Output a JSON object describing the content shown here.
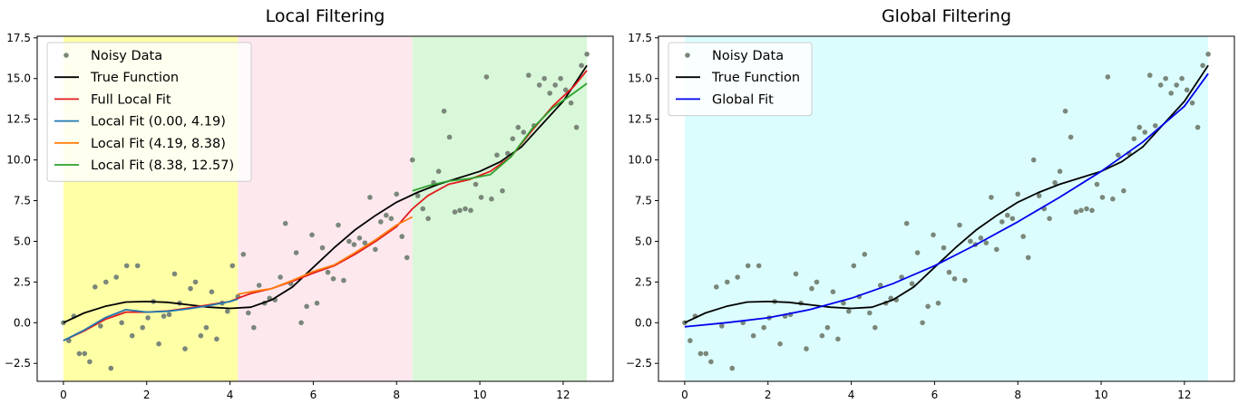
{
  "chart_data": [
    {
      "type": "line",
      "title": "Local Filtering",
      "xlabel": "",
      "ylabel": "",
      "xlim": [
        -0.63,
        13.2
      ],
      "ylim": [
        -3.6,
        17.6
      ],
      "xticks": [
        0,
        2,
        4,
        6,
        8,
        10,
        12
      ],
      "xtick_labels": [
        "0",
        "2",
        "4",
        "6",
        "8",
        "10",
        "12"
      ],
      "yticks": [
        -2.5,
        0,
        2.5,
        5,
        7.5,
        10,
        12.5,
        15,
        17.5
      ],
      "ytick_labels": [
        "−2.5",
        "0.0",
        "2.5",
        "5.0",
        "7.5",
        "10.0",
        "12.5",
        "15.0",
        "17.5"
      ],
      "grid": false,
      "legend_position": "top-left",
      "regions": [
        {
          "x0": 0.0,
          "x1": 4.19,
          "color": "#ffffa6"
        },
        {
          "x0": 4.19,
          "x1": 8.38,
          "color": "#fde8ee"
        },
        {
          "x0": 8.38,
          "x1": 12.57,
          "color": "#d9f7d9"
        }
      ],
      "series": [
        {
          "name": "Noisy Data",
          "kind": "scatter",
          "color": "#7a877a",
          "x": [
            0.0,
            0.13,
            0.25,
            0.38,
            0.51,
            0.63,
            0.76,
            0.89,
            1.02,
            1.14,
            1.27,
            1.4,
            1.52,
            1.65,
            1.78,
            1.9,
            2.03,
            2.16,
            2.29,
            2.41,
            2.54,
            2.67,
            2.79,
            2.92,
            3.05,
            3.17,
            3.3,
            3.43,
            3.56,
            3.68,
            3.81,
            3.94,
            4.06,
            4.19,
            4.32,
            4.44,
            4.57,
            4.7,
            4.83,
            4.95,
            5.08,
            5.21,
            5.33,
            5.46,
            5.59,
            5.71,
            5.84,
            5.97,
            6.09,
            6.22,
            6.35,
            6.48,
            6.6,
            6.73,
            6.86,
            6.98,
            7.11,
            7.24,
            7.36,
            7.49,
            7.62,
            7.75,
            7.87,
            8.0,
            8.13,
            8.25,
            8.38,
            8.51,
            8.63,
            8.76,
            8.89,
            9.01,
            9.14,
            9.27,
            9.4,
            9.52,
            9.65,
            9.78,
            9.9,
            10.03,
            10.16,
            10.28,
            10.41,
            10.54,
            10.67,
            10.79,
            10.92,
            11.05,
            11.17,
            11.3,
            11.43,
            11.55,
            11.68,
            11.81,
            11.94,
            12.06,
            12.19,
            12.32,
            12.44,
            12.57
          ],
          "y": [
            0.0,
            -1.1,
            0.4,
            -1.9,
            -1.9,
            -2.4,
            2.2,
            -0.2,
            2.5,
            -2.8,
            2.8,
            0.0,
            3.5,
            -0.8,
            3.5,
            -0.3,
            0.3,
            1.3,
            -1.3,
            0.4,
            0.5,
            3.0,
            1.2,
            -1.6,
            2.1,
            2.5,
            -0.8,
            -0.3,
            1.9,
            -1.0,
            1.2,
            0.7,
            3.5,
            1.6,
            4.2,
            0.6,
            -0.3,
            2.3,
            1.2,
            1.5,
            1.4,
            2.8,
            6.1,
            2.4,
            4.3,
            0.0,
            1.0,
            5.4,
            1.2,
            4.6,
            3.1,
            2.7,
            6.0,
            2.6,
            5.0,
            4.8,
            5.2,
            4.9,
            7.7,
            4.5,
            6.2,
            6.6,
            6.4,
            7.9,
            5.3,
            4.0,
            10.0,
            7.8,
            7.0,
            6.4,
            8.6,
            9.3,
            13.0,
            11.4,
            6.8,
            6.9,
            7.0,
            6.9,
            8.5,
            7.7,
            15.1,
            7.6,
            10.3,
            8.1,
            10.4,
            11.3,
            12.0,
            11.7,
            15.2,
            12.1,
            14.6,
            15.0,
            14.1,
            14.6,
            15.0,
            14.3,
            13.5,
            12.0,
            15.8,
            16.5
          ]
        },
        {
          "name": "True Function",
          "kind": "line",
          "color": "#000000",
          "x": [
            0,
            0.5,
            1,
            1.5,
            2,
            2.5,
            3,
            3.5,
            4,
            4.5,
            5,
            5.5,
            6,
            6.5,
            7,
            7.5,
            8,
            8.5,
            9,
            9.5,
            10,
            10.5,
            11,
            11.5,
            12,
            12.57
          ],
          "y": [
            0.0,
            0.6,
            1.0,
            1.27,
            1.3,
            1.25,
            1.1,
            0.95,
            0.88,
            0.95,
            1.4,
            2.2,
            3.4,
            4.6,
            5.7,
            6.6,
            7.4,
            8.0,
            8.5,
            8.9,
            9.3,
            9.9,
            10.8,
            12.2,
            13.6,
            15.8
          ]
        },
        {
          "name": "Full Local Fit",
          "kind": "line",
          "color": "#e31a1c",
          "x": [
            0,
            0.5,
            1,
            1.5,
            2,
            2.5,
            3,
            3.5,
            4,
            4.19,
            4.5,
            5,
            5.5,
            6,
            6.5,
            7,
            7.5,
            8,
            8.38,
            8.75,
            9.25,
            9.75,
            10.25,
            10.75,
            11.25,
            11.75,
            12.25,
            12.57
          ],
          "y": [
            -1.1,
            -0.5,
            0.2,
            0.65,
            0.65,
            0.72,
            0.9,
            1.1,
            1.3,
            1.5,
            1.8,
            2.1,
            2.55,
            3.05,
            3.5,
            4.2,
            5.0,
            5.9,
            7.0,
            7.8,
            8.5,
            8.8,
            9.3,
            10.2,
            11.8,
            13.3,
            14.5,
            15.5
          ]
        },
        {
          "name": "Local Fit (0.00, 4.19)",
          "kind": "line",
          "color": "#1f77b4",
          "x": [
            0,
            0.5,
            1,
            1.5,
            2,
            2.5,
            3,
            3.5,
            4,
            4.19
          ],
          "y": [
            -1.1,
            -0.45,
            0.3,
            0.8,
            0.65,
            0.7,
            0.85,
            1.05,
            1.3,
            1.45
          ]
        },
        {
          "name": "Local Fit (4.19, 8.38)",
          "kind": "line",
          "color": "#ff7f0e",
          "x": [
            4.19,
            4.5,
            5,
            5.5,
            6,
            6.5,
            7,
            7.5,
            8,
            8.38
          ],
          "y": [
            1.75,
            1.9,
            2.1,
            2.6,
            3.15,
            3.55,
            4.3,
            5.1,
            6.0,
            6.5
          ]
        },
        {
          "name": "Local Fit (8.38, 12.57)",
          "kind": "line",
          "color": "#2ca02c",
          "x": [
            8.38,
            8.75,
            9.25,
            9.75,
            10.25,
            10.75,
            11.25,
            11.75,
            12.25,
            12.57
          ],
          "y": [
            8.1,
            8.4,
            8.7,
            8.85,
            9.1,
            10.2,
            11.9,
            13.2,
            14.1,
            14.7
          ]
        }
      ]
    },
    {
      "type": "line",
      "title": "Global Filtering",
      "xlabel": "",
      "ylabel": "",
      "xlim": [
        -0.63,
        13.2
      ],
      "ylim": [
        -3.6,
        17.6
      ],
      "xticks": [
        0,
        2,
        4,
        6,
        8,
        10,
        12
      ],
      "xtick_labels": [
        "0",
        "2",
        "4",
        "6",
        "8",
        "10",
        "12"
      ],
      "yticks": [
        -2.5,
        0,
        2.5,
        5,
        7.5,
        10,
        12.5,
        15,
        17.5
      ],
      "ytick_labels": [
        "−2.5",
        "0.0",
        "2.5",
        "5.0",
        "7.5",
        "10.0",
        "12.5",
        "15.0",
        "17.5"
      ],
      "grid": false,
      "legend_position": "top-left",
      "regions": [
        {
          "x0": 0.0,
          "x1": 12.57,
          "color": "#dcfdfd"
        }
      ],
      "series": [
        {
          "name": "Noisy Data",
          "kind": "scatter",
          "color": "#7a877a",
          "x": [
            0.0,
            0.13,
            0.25,
            0.38,
            0.51,
            0.63,
            0.76,
            0.89,
            1.02,
            1.14,
            1.27,
            1.4,
            1.52,
            1.65,
            1.78,
            1.9,
            2.03,
            2.16,
            2.29,
            2.41,
            2.54,
            2.67,
            2.79,
            2.92,
            3.05,
            3.17,
            3.3,
            3.43,
            3.56,
            3.68,
            3.81,
            3.94,
            4.06,
            4.19,
            4.32,
            4.44,
            4.57,
            4.7,
            4.83,
            4.95,
            5.08,
            5.21,
            5.33,
            5.46,
            5.59,
            5.71,
            5.84,
            5.97,
            6.09,
            6.22,
            6.35,
            6.48,
            6.6,
            6.73,
            6.86,
            6.98,
            7.11,
            7.24,
            7.36,
            7.49,
            7.62,
            7.75,
            7.87,
            8.0,
            8.13,
            8.25,
            8.38,
            8.51,
            8.63,
            8.76,
            8.89,
            9.01,
            9.14,
            9.27,
            9.4,
            9.52,
            9.65,
            9.78,
            9.9,
            10.03,
            10.16,
            10.28,
            10.41,
            10.54,
            10.67,
            10.79,
            10.92,
            11.05,
            11.17,
            11.3,
            11.43,
            11.55,
            11.68,
            11.81,
            11.94,
            12.06,
            12.19,
            12.32,
            12.44,
            12.57
          ],
          "y": [
            0.0,
            -1.1,
            0.4,
            -1.9,
            -1.9,
            -2.4,
            2.2,
            -0.2,
            2.5,
            -2.8,
            2.8,
            0.0,
            3.5,
            -0.8,
            3.5,
            -0.3,
            0.3,
            1.3,
            -1.3,
            0.4,
            0.5,
            3.0,
            1.2,
            -1.6,
            2.1,
            2.5,
            -0.8,
            -0.3,
            1.9,
            -1.0,
            1.2,
            0.7,
            3.5,
            1.6,
            4.2,
            0.6,
            -0.3,
            2.3,
            1.2,
            1.5,
            1.4,
            2.8,
            6.1,
            2.4,
            4.3,
            0.0,
            1.0,
            5.4,
            1.2,
            4.6,
            3.1,
            2.7,
            6.0,
            2.6,
            5.0,
            4.8,
            5.2,
            4.9,
            7.7,
            4.5,
            6.2,
            6.6,
            6.4,
            7.9,
            5.3,
            4.0,
            10.0,
            7.8,
            7.0,
            6.4,
            8.6,
            9.3,
            13.0,
            11.4,
            6.8,
            6.9,
            7.0,
            6.9,
            8.5,
            7.7,
            15.1,
            7.6,
            10.3,
            8.1,
            10.4,
            11.3,
            12.0,
            11.7,
            15.2,
            12.1,
            14.6,
            15.0,
            14.1,
            14.6,
            15.0,
            14.3,
            13.5,
            12.0,
            15.8,
            16.5
          ]
        },
        {
          "name": "True Function",
          "kind": "line",
          "color": "#000000",
          "x": [
            0,
            0.5,
            1,
            1.5,
            2,
            2.5,
            3,
            3.5,
            4,
            4.5,
            5,
            5.5,
            6,
            6.5,
            7,
            7.5,
            8,
            8.5,
            9,
            9.5,
            10,
            10.5,
            11,
            11.5,
            12,
            12.57
          ],
          "y": [
            0.0,
            0.6,
            1.0,
            1.27,
            1.3,
            1.25,
            1.1,
            0.95,
            0.88,
            0.95,
            1.4,
            2.2,
            3.4,
            4.6,
            5.7,
            6.6,
            7.4,
            8.0,
            8.5,
            8.9,
            9.3,
            9.9,
            10.8,
            12.2,
            13.6,
            15.8
          ]
        },
        {
          "name": "Global Fit",
          "kind": "line",
          "color": "#0000ee",
          "x": [
            0,
            1,
            2,
            3,
            4,
            5,
            6,
            7,
            8,
            9,
            10,
            11,
            12,
            12.57
          ],
          "y": [
            -0.25,
            0.0,
            0.3,
            0.8,
            1.5,
            2.4,
            3.5,
            4.8,
            6.2,
            7.7,
            9.3,
            11.1,
            13.3,
            15.3
          ]
        }
      ]
    }
  ]
}
